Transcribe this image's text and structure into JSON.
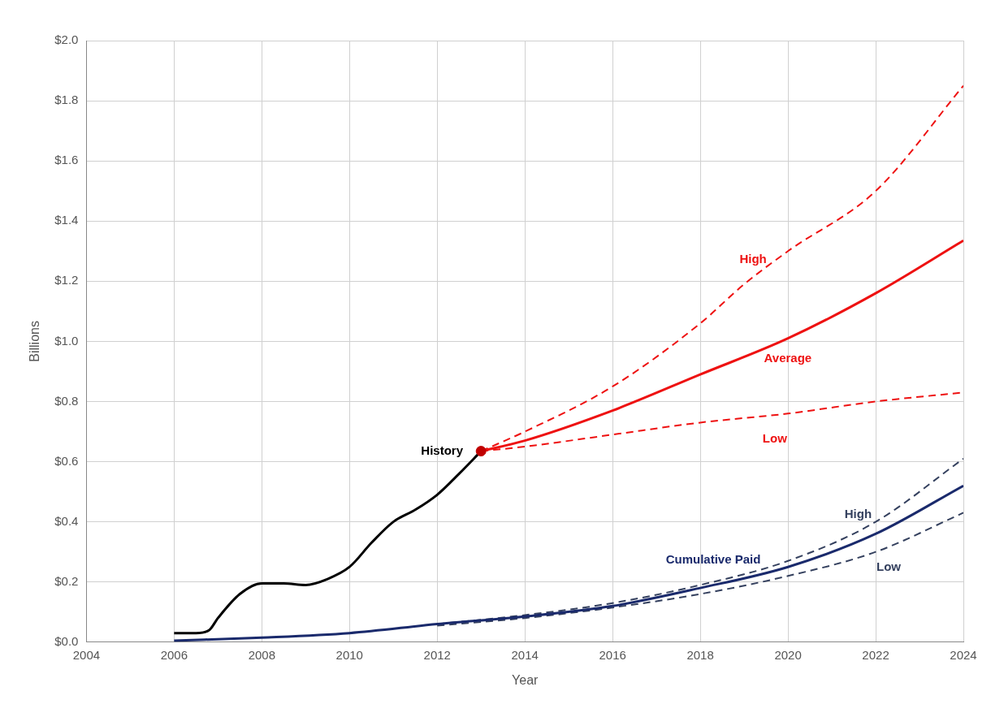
{
  "chart_data": {
    "type": "line",
    "xlabel": "Year",
    "ylabel": "Billions",
    "xlim": [
      2004,
      2024
    ],
    "xticks": [
      2004,
      2006,
      2008,
      2010,
      2012,
      2014,
      2016,
      2018,
      2020,
      2022,
      2024
    ],
    "ylim": [
      0,
      2
    ],
    "yticks": [
      {
        "value": 0,
        "label": "$0.0"
      },
      {
        "value": 0.2,
        "label": "$0.2"
      },
      {
        "value": 0.4,
        "label": "$0.4"
      },
      {
        "value": 0.6,
        "label": "$0.6"
      },
      {
        "value": 0.8,
        "label": "$0.8"
      },
      {
        "value": 1.0,
        "label": "$1.0"
      },
      {
        "value": 1.2,
        "label": "$1.2"
      },
      {
        "value": 1.4,
        "label": "$1.4"
      },
      {
        "value": 1.6,
        "label": "$1.6"
      },
      {
        "value": 1.8,
        "label": "$1.8"
      },
      {
        "value": 2.0,
        "label": "$2.0"
      }
    ],
    "grid": true,
    "legend": false,
    "series": [
      {
        "name": "History",
        "color": "#000000",
        "line_style": "solid",
        "x": [
          2006,
          2006.5,
          2006.8,
          2007,
          2007.5,
          2008,
          2008.5,
          2009,
          2009.5,
          2010,
          2010.5,
          2011,
          2011.5,
          2012,
          2012.5,
          2013
        ],
        "values": [
          0.03,
          0.03,
          0.04,
          0.08,
          0.16,
          0.195,
          0.195,
          0.19,
          0.21,
          0.25,
          0.33,
          0.4,
          0.44,
          0.49,
          0.56,
          0.635
        ]
      },
      {
        "name": "Average",
        "color": "#ee1111",
        "line_style": "solid",
        "x": [
          2013,
          2014,
          2016,
          2018,
          2020,
          2022,
          2024
        ],
        "values": [
          0.635,
          0.67,
          0.77,
          0.89,
          1.01,
          1.16,
          1.335
        ]
      },
      {
        "name": "High",
        "color": "#ee1111",
        "line_style": "dashed",
        "x": [
          2013,
          2014,
          2016,
          2018,
          2019,
          2020,
          2022,
          2024
        ],
        "values": [
          0.635,
          0.7,
          0.85,
          1.06,
          1.19,
          1.3,
          1.5,
          1.85
        ]
      },
      {
        "name": "Low",
        "color": "#ee1111",
        "line_style": "dashed",
        "x": [
          2013,
          2014,
          2016,
          2018,
          2020,
          2022,
          2024
        ],
        "values": [
          0.635,
          0.65,
          0.69,
          0.73,
          0.76,
          0.8,
          0.83
        ]
      },
      {
        "name": "Cumulative Paid",
        "color": "#1a2a6c",
        "line_style": "solid",
        "x": [
          2006,
          2008,
          2010,
          2012,
          2014,
          2016,
          2018,
          2020,
          2022,
          2024
        ],
        "values": [
          0.005,
          0.015,
          0.03,
          0.06,
          0.085,
          0.12,
          0.18,
          0.25,
          0.36,
          0.52
        ]
      },
      {
        "name": "High",
        "color": "#34405e",
        "line_style": "dashed",
        "x": [
          2012,
          2014,
          2016,
          2018,
          2020,
          2022,
          2024
        ],
        "values": [
          0.06,
          0.09,
          0.13,
          0.19,
          0.27,
          0.4,
          0.61
        ]
      },
      {
        "name": "Low",
        "color": "#34405e",
        "line_style": "dashed",
        "x": [
          2012,
          2014,
          2016,
          2018,
          2020,
          2022,
          2024
        ],
        "values": [
          0.055,
          0.08,
          0.115,
          0.16,
          0.22,
          0.3,
          0.43
        ]
      },
      {
        "type": "scatter",
        "marker": "circle",
        "color": "#c00000",
        "x": [
          2013
        ],
        "values": [
          0.635
        ]
      }
    ]
  }
}
